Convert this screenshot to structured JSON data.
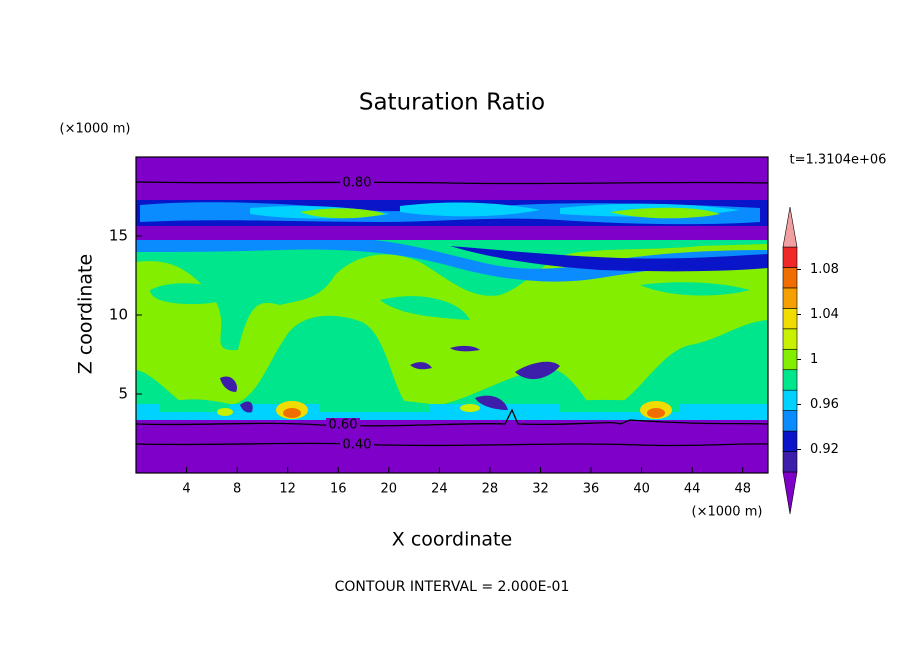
{
  "chart_data": {
    "type": "contour",
    "title": "Saturation Ratio",
    "x_label": "X coordinate",
    "y_label": "Z coordinate",
    "x_unit": "(×1000 m)",
    "y_unit": "(×1000 m)",
    "time_label": "t=1.3104e+06",
    "footer": "CONTOUR INTERVAL = 2.000E-01",
    "xlim": [
      0,
      50
    ],
    "ylim": [
      0,
      20
    ],
    "xticks": [
      4,
      8,
      12,
      16,
      20,
      24,
      28,
      32,
      36,
      40,
      44,
      48
    ],
    "yticks": [
      5,
      10,
      15
    ],
    "contour_labels": [
      {
        "value": 0.8,
        "label": "0.80"
      },
      {
        "value": 0.6,
        "label": "0.60"
      },
      {
        "value": 0.4,
        "label": "0.40"
      }
    ],
    "colorbar": {
      "lim": [
        0.9,
        1.1
      ],
      "ticks": [
        0.92,
        0.96,
        1,
        1.04,
        1.08
      ],
      "colors": [
        "#7f00c8",
        "#3c1eaa",
        "#0a14c8",
        "#0a8cff",
        "#00d2ff",
        "#00e68c",
        "#84ee00",
        "#c8f000",
        "#f0dc00",
        "#f5a000",
        "#f06e00",
        "#f02828",
        "#f0a0a0"
      ]
    }
  }
}
